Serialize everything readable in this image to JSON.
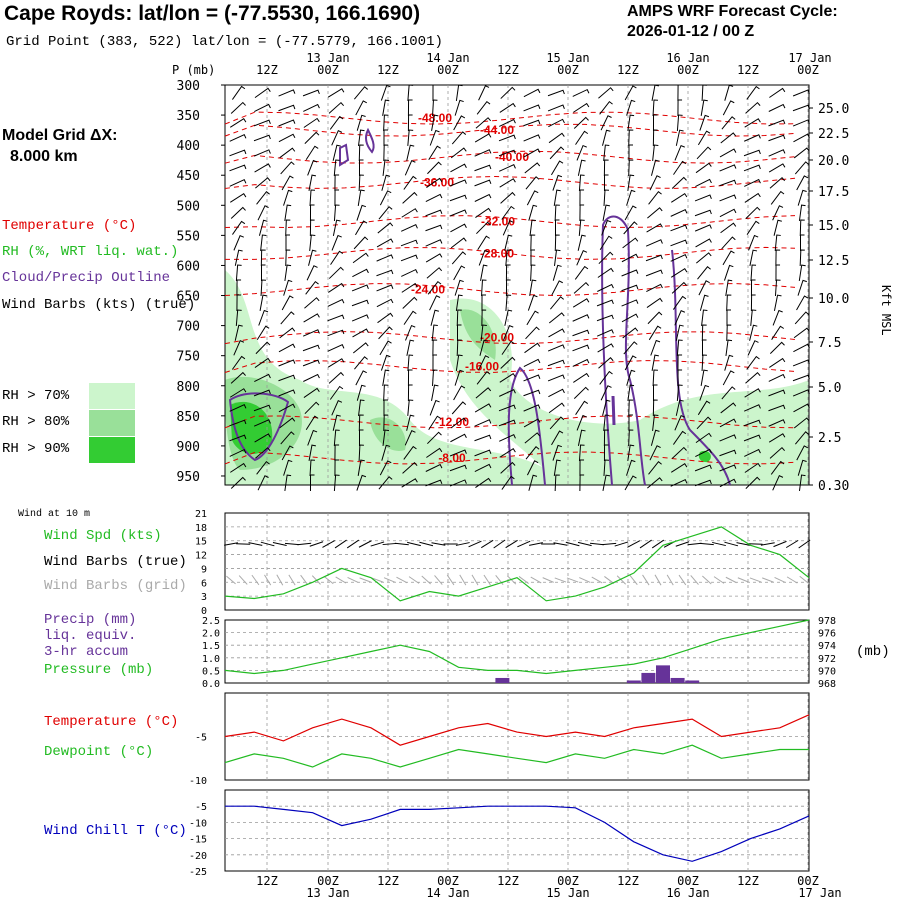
{
  "header": {
    "title": "Cape Royds:  lat/lon = (-77.5530, 166.1690)",
    "subtitle": "Grid Point (383, 522) lat/lon = (-77.5779, 166.1001)",
    "cycle_line1": "AMPS WRF Forecast Cycle:",
    "cycle_line2": "2026-01-12 / 00  Z",
    "grid_label": "Model Grid ΔX:",
    "grid_value": "8.000 km"
  },
  "legend": {
    "temperature": "Temperature (°C)",
    "rh": "RH (%, WRT liq. wat.)",
    "cloud": "Cloud/Precip Outline",
    "wind_barbs": "Wind Barbs (kts) (true)",
    "rh70": "RH > 70%",
    "rh80": "RH > 80%",
    "rh90": "RH > 90%"
  },
  "colors": {
    "temperature": "#e00000",
    "rh": "#22bb22",
    "cloud": "#663399",
    "dewpoint": "#22bb22",
    "windchill": "#0000bb",
    "rh70": "#ccf5cc",
    "rh80": "#99e099",
    "rh90": "#33cc33",
    "grid": "#999999"
  },
  "time_axis": {
    "labels": [
      "12Z",
      "00Z",
      "12Z",
      "00Z",
      "12Z",
      "00Z",
      "12Z",
      "00Z",
      "12Z",
      "00Z"
    ],
    "date_labels": [
      {
        "text": "13 Jan",
        "at_tick": 1
      },
      {
        "text": "14 Jan",
        "at_tick": 3
      },
      {
        "text": "15 Jan",
        "at_tick": 5
      },
      {
        "text": "16 Jan",
        "at_tick": 7
      },
      {
        "text": "17 Jan",
        "at_tick": 9
      }
    ],
    "hours_total": 120
  },
  "chart_data": [
    {
      "type": "contour",
      "name": "cross-section",
      "title": "",
      "ylabel": "P (mb)",
      "y2label": "Kft MSL",
      "pressure_ticks": [
        300,
        350,
        400,
        450,
        500,
        550,
        600,
        650,
        700,
        750,
        800,
        850,
        900,
        950
      ],
      "kft_ticks": [
        "25.0",
        "22.5",
        "20.0",
        "17.5",
        "15.0",
        "12.5",
        "10.0",
        "7.5",
        "5.0",
        "2.5",
        "0.30"
      ],
      "temperature_contours": [
        {
          "label": "-48.00",
          "p": 355
        },
        {
          "label": "-44.00",
          "p": 375
        },
        {
          "label": "-40.00",
          "p": 420
        },
        {
          "label": "-36.00",
          "p": 462
        },
        {
          "label": "-32.00",
          "p": 527
        },
        {
          "label": "-28.00",
          "p": 580
        },
        {
          "label": "-24.00",
          "p": 640
        },
        {
          "label": "-20.00",
          "p": 720
        },
        {
          "label": "-16.00",
          "p": 768
        },
        {
          "label": "-12.00",
          "p": 860
        },
        {
          "label": "-8.00",
          "p": 920
        }
      ]
    },
    {
      "type": "line",
      "name": "wind-10m",
      "panel_label": "Wind at 10 m",
      "series_label": "Wind Spd (kts)",
      "barbs_true_label": "Wind Barbs (true)",
      "barbs_grid_label": "Wind Barbs (grid)",
      "ylim": [
        0,
        21
      ],
      "yticks": [
        0,
        3,
        6,
        9,
        12,
        15,
        18,
        21
      ],
      "x_hours": [
        0,
        6,
        12,
        18,
        24,
        30,
        36,
        42,
        48,
        54,
        60,
        66,
        72,
        78,
        84,
        90,
        96,
        102,
        108,
        114,
        120
      ],
      "values": [
        3,
        2.5,
        3.5,
        6,
        9,
        7,
        2,
        4,
        3,
        5,
        7,
        2,
        3,
        5,
        8,
        14,
        16,
        18,
        14,
        12,
        7
      ]
    },
    {
      "type": "line+bar",
      "name": "precip-pressure",
      "precip_label": "Precip (mm)",
      "precip_label2": "liq. equiv.",
      "precip_label3": "3-hr accum",
      "pressure_label": "Pressure (mb)",
      "unit_label": "(mb)",
      "precip_ylim": [
        0,
        2.5
      ],
      "precip_yticks": [
        "0.0",
        "0.5",
        "1.0",
        "1.5",
        "2.0",
        "2.5"
      ],
      "pressure_ylim": [
        968,
        978
      ],
      "pressure_yticks": [
        "968",
        "970",
        "972",
        "974",
        "976",
        "978"
      ],
      "x_hours": [
        0,
        6,
        12,
        18,
        24,
        30,
        36,
        42,
        48,
        54,
        60,
        66,
        72,
        78,
        84,
        90,
        96,
        102,
        108,
        114,
        120
      ],
      "pressure": [
        970,
        969.5,
        970,
        971,
        972,
        973,
        974,
        973,
        970.5,
        970,
        970,
        969.5,
        970,
        970.5,
        971,
        972,
        973.5,
        975,
        976,
        977,
        978
      ],
      "precip_hours": [
        57,
        84,
        87,
        90,
        93,
        96
      ],
      "precip_values": [
        0.2,
        0.1,
        0.4,
        0.7,
        0.2,
        0.1
      ]
    },
    {
      "type": "line",
      "name": "temperature-dewpoint",
      "temp_label": "Temperature (°C)",
      "dew_label": "Dewpoint (°C)",
      "ylim": [
        -10,
        0
      ],
      "yticks": [
        "-5",
        "-10"
      ],
      "x_hours": [
        0,
        6,
        12,
        18,
        24,
        30,
        36,
        42,
        48,
        54,
        60,
        66,
        72,
        78,
        84,
        90,
        96,
        102,
        108,
        114,
        120
      ],
      "temperature": [
        -5,
        -4.5,
        -5.5,
        -4,
        -3,
        -4,
        -6,
        -5,
        -4,
        -3.5,
        -4.5,
        -5,
        -4.5,
        -5,
        -4,
        -3.5,
        -3,
        -5,
        -4.5,
        -4,
        -2.5
      ],
      "dewpoint": [
        -8,
        -7,
        -7.5,
        -8.5,
        -7,
        -7.5,
        -8.5,
        -7.5,
        -6.5,
        -7,
        -7.5,
        -8,
        -7,
        -7.5,
        -6.5,
        -7,
        -6,
        -7.5,
        -7,
        -6.5,
        -6.5
      ]
    },
    {
      "type": "line",
      "name": "wind-chill",
      "series_label": "Wind Chill T (°C)",
      "ylim": [
        -25,
        0
      ],
      "yticks": [
        "-5",
        "-10",
        "-15",
        "-20",
        "-25"
      ],
      "x_hours": [
        0,
        6,
        12,
        18,
        24,
        30,
        36,
        42,
        48,
        54,
        60,
        66,
        72,
        78,
        84,
        90,
        96,
        102,
        108,
        114,
        120
      ],
      "values": [
        -5,
        -5,
        -6,
        -7,
        -11,
        -9,
        -6,
        -6,
        -5.5,
        -5,
        -5,
        -5,
        -5.5,
        -10,
        -16,
        -20,
        -22,
        -19,
        -15,
        -12,
        -8
      ]
    }
  ]
}
